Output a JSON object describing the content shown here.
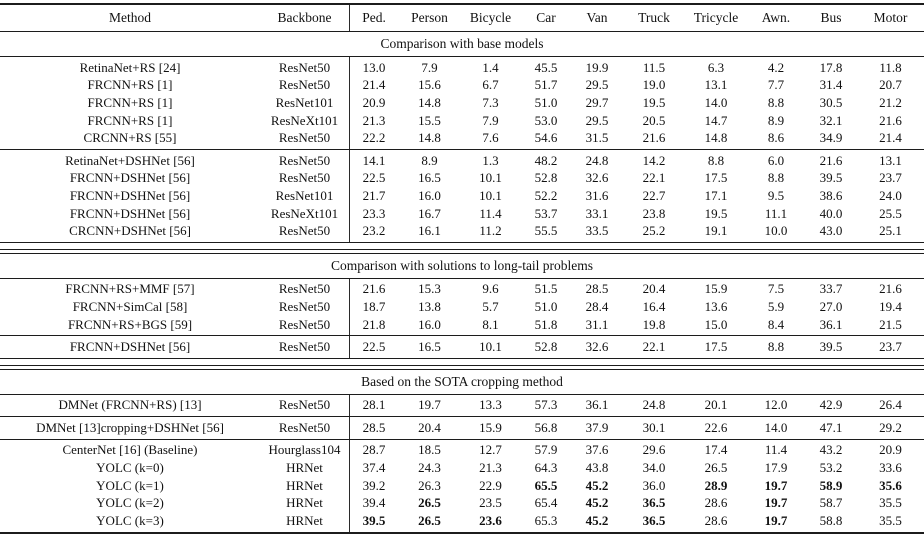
{
  "page": {
    "background": "#ffffff",
    "text_color": "#111111",
    "rule_color": "#1c1c1c"
  },
  "table": {
    "columns": [
      "Method",
      "Backbone",
      "Ped.",
      "Person",
      "Bicycle",
      "Car",
      "Van",
      "Truck",
      "Tricycle",
      "Awn.",
      "Bus",
      "Motor"
    ],
    "sections": [
      {
        "title": "Comparison with base models",
        "groups": [
          {
            "rows": [
              {
                "method": "RetinaNet+RS [24]",
                "backbone": "ResNet50",
                "values": [
                  "13.0",
                  "7.9",
                  "1.4",
                  "45.5",
                  "19.9",
                  "11.5",
                  "6.3",
                  "4.2",
                  "17.8",
                  "11.8"
                ],
                "bold": []
              },
              {
                "method": "FRCNN+RS [1]",
                "backbone": "ResNet50",
                "values": [
                  "21.4",
                  "15.6",
                  "6.7",
                  "51.7",
                  "29.5",
                  "19.0",
                  "13.1",
                  "7.7",
                  "31.4",
                  "20.7"
                ],
                "bold": []
              },
              {
                "method": "FRCNN+RS [1]",
                "backbone": "ResNet101",
                "values": [
                  "20.9",
                  "14.8",
                  "7.3",
                  "51.0",
                  "29.7",
                  "19.5",
                  "14.0",
                  "8.8",
                  "30.5",
                  "21.2"
                ],
                "bold": []
              },
              {
                "method": "FRCNN+RS [1]",
                "backbone": "ResNeXt101",
                "values": [
                  "21.3",
                  "15.5",
                  "7.9",
                  "53.0",
                  "29.5",
                  "20.5",
                  "14.7",
                  "8.9",
                  "32.1",
                  "21.6"
                ],
                "bold": []
              },
              {
                "method": "CRCNN+RS [55]",
                "backbone": "ResNet50",
                "values": [
                  "22.2",
                  "14.8",
                  "7.6",
                  "54.6",
                  "31.5",
                  "21.6",
                  "14.8",
                  "8.6",
                  "34.9",
                  "21.4"
                ],
                "bold": []
              }
            ]
          },
          {
            "rows": [
              {
                "method": "RetinaNet+DSHNet [56]",
                "backbone": "ResNet50",
                "values": [
                  "14.1",
                  "8.9",
                  "1.3",
                  "48.2",
                  "24.8",
                  "14.2",
                  "8.8",
                  "6.0",
                  "21.6",
                  "13.1"
                ],
                "bold": []
              },
              {
                "method": "FRCNN+DSHNet [56]",
                "backbone": "ResNet50",
                "values": [
                  "22.5",
                  "16.5",
                  "10.1",
                  "52.8",
                  "32.6",
                  "22.1",
                  "17.5",
                  "8.8",
                  "39.5",
                  "23.7"
                ],
                "bold": []
              },
              {
                "method": "FRCNN+DSHNet [56]",
                "backbone": "ResNet101",
                "values": [
                  "21.7",
                  "16.0",
                  "10.1",
                  "52.2",
                  "31.6",
                  "22.7",
                  "17.1",
                  "9.5",
                  "38.6",
                  "24.0"
                ],
                "bold": []
              },
              {
                "method": "FRCNN+DSHNet [56]",
                "backbone": "ResNeXt101",
                "values": [
                  "23.3",
                  "16.7",
                  "11.4",
                  "53.7",
                  "33.1",
                  "23.8",
                  "19.5",
                  "11.1",
                  "40.0",
                  "25.5"
                ],
                "bold": []
              },
              {
                "method": "CRCNN+DSHNet [56]",
                "backbone": "ResNet50",
                "values": [
                  "23.2",
                  "16.1",
                  "11.2",
                  "55.5",
                  "33.5",
                  "25.2",
                  "19.1",
                  "10.0",
                  "43.0",
                  "25.1"
                ],
                "bold": []
              }
            ]
          }
        ]
      },
      {
        "title": "Comparison with solutions to long-tail problems",
        "groups": [
          {
            "rows": [
              {
                "method": "FRCNN+RS+MMF [57]",
                "backbone": "ResNet50",
                "values": [
                  "21.6",
                  "15.3",
                  "9.6",
                  "51.5",
                  "28.5",
                  "20.4",
                  "15.9",
                  "7.5",
                  "33.7",
                  "21.6"
                ],
                "bold": []
              },
              {
                "method": "FRCNN+SimCal [58]",
                "backbone": "ResNet50",
                "values": [
                  "18.7",
                  "13.8",
                  "5.7",
                  "51.0",
                  "28.4",
                  "16.4",
                  "13.6",
                  "5.9",
                  "27.0",
                  "19.4"
                ],
                "bold": []
              },
              {
                "method": "FRCNN+RS+BGS [59]",
                "backbone": "ResNet50",
                "values": [
                  "21.8",
                  "16.0",
                  "8.1",
                  "51.8",
                  "31.1",
                  "19.8",
                  "15.0",
                  "8.4",
                  "36.1",
                  "21.5"
                ],
                "bold": []
              }
            ]
          },
          {
            "rows": [
              {
                "method": "FRCNN+DSHNet [56]",
                "backbone": "ResNet50",
                "values": [
                  "22.5",
                  "16.5",
                  "10.1",
                  "52.8",
                  "32.6",
                  "22.1",
                  "17.5",
                  "8.8",
                  "39.5",
                  "23.7"
                ],
                "bold": []
              }
            ]
          }
        ]
      },
      {
        "title": "Based on the SOTA cropping method",
        "groups": [
          {
            "rows": [
              {
                "method": "DMNet (FRCNN+RS) [13]",
                "backbone": "ResNet50",
                "values": [
                  "28.1",
                  "19.7",
                  "13.3",
                  "57.3",
                  "36.1",
                  "24.8",
                  "20.1",
                  "12.0",
                  "42.9",
                  "26.4"
                ],
                "bold": []
              }
            ]
          },
          {
            "rows": [
              {
                "method": "DMNet [13]cropping+DSHNet [56]",
                "backbone": "ResNet50",
                "values": [
                  "28.5",
                  "20.4",
                  "15.9",
                  "56.8",
                  "37.9",
                  "30.1",
                  "22.6",
                  "14.0",
                  "47.1",
                  "29.2"
                ],
                "bold": []
              }
            ]
          },
          {
            "rows": [
              {
                "method": "CenterNet [16] (Baseline)",
                "backbone": "Hourglass104",
                "values": [
                  "28.7",
                  "18.5",
                  "12.7",
                  "57.9",
                  "37.6",
                  "29.6",
                  "17.4",
                  "11.4",
                  "43.2",
                  "20.9"
                ],
                "bold": []
              },
              {
                "method": "YOLC (k=0)",
                "backbone": "HRNet",
                "values": [
                  "37.4",
                  "24.3",
                  "21.3",
                  "64.3",
                  "43.8",
                  "34.0",
                  "26.5",
                  "17.9",
                  "53.2",
                  "33.6"
                ],
                "bold": []
              },
              {
                "method": "YOLC (k=1)",
                "backbone": "HRNet",
                "values": [
                  "39.2",
                  "26.3",
                  "22.9",
                  "65.5",
                  "45.2",
                  "36.0",
                  "28.9",
                  "19.7",
                  "58.9",
                  "35.6"
                ],
                "bold": [
                  3,
                  4,
                  6,
                  7,
                  8,
                  9
                ]
              },
              {
                "method": "YOLC (k=2)",
                "backbone": "HRNet",
                "values": [
                  "39.4",
                  "26.5",
                  "23.5",
                  "65.4",
                  "45.2",
                  "36.5",
                  "28.6",
                  "19.7",
                  "58.7",
                  "35.5"
                ],
                "bold": [
                  1,
                  4,
                  5,
                  7
                ]
              },
              {
                "method": "YOLC (k=3)",
                "backbone": "HRNet",
                "values": [
                  "39.5",
                  "26.5",
                  "23.6",
                  "65.3",
                  "45.2",
                  "36.5",
                  "28.6",
                  "19.7",
                  "58.8",
                  "35.5"
                ],
                "bold": [
                  0,
                  1,
                  2,
                  4,
                  5,
                  7
                ]
              }
            ]
          }
        ]
      }
    ]
  }
}
